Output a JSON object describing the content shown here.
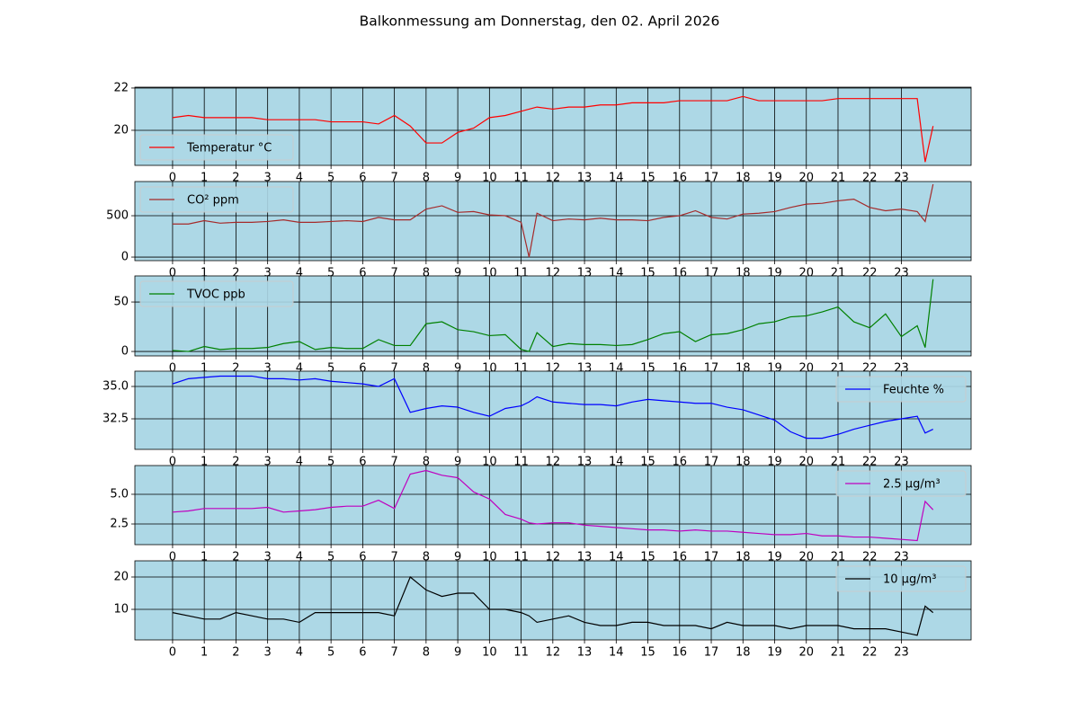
{
  "title": "Balkonmessung am Donnerstag, den 02. April 2026",
  "chart_data": [
    {
      "type": "line",
      "grid": true,
      "legend": "lower left",
      "x": [
        0,
        0.5,
        1,
        1.5,
        2,
        2.5,
        3,
        3.5,
        4,
        4.5,
        5,
        5.5,
        6,
        6.5,
        7,
        7.5,
        8,
        8.5,
        9,
        9.5,
        10,
        10.5,
        11,
        11.25,
        11.5,
        12,
        12.5,
        13,
        13.5,
        14,
        14.5,
        15,
        15.5,
        16,
        16.5,
        17,
        17.5,
        18,
        18.5,
        19,
        19.5,
        20,
        20.5,
        21,
        21.5,
        22,
        22.5,
        23,
        23.5,
        23.75,
        24
      ],
      "xlim": [
        -1.19,
        25.2
      ],
      "xticks": [
        0,
        1,
        2,
        3,
        4,
        5,
        6,
        7,
        8,
        9,
        10,
        11,
        12,
        13,
        14,
        15,
        16,
        17,
        18,
        19,
        20,
        21,
        22,
        23
      ],
      "ylim": [
        18.34,
        22.04
      ],
      "yticks": [
        20,
        22
      ],
      "series": [
        {
          "name": "Temperatur °C",
          "color": "#ff0000",
          "values": [
            20.6,
            20.7,
            20.6,
            20.6,
            20.6,
            20.6,
            20.5,
            20.5,
            20.5,
            20.5,
            20.4,
            20.4,
            20.4,
            20.3,
            20.7,
            20.2,
            19.4,
            19.4,
            19.9,
            20.1,
            20.6,
            20.7,
            20.9,
            21.0,
            21.1,
            21.0,
            21.1,
            21.1,
            21.2,
            21.2,
            21.3,
            21.3,
            21.3,
            21.4,
            21.4,
            21.4,
            21.4,
            21.6,
            21.4,
            21.4,
            21.4,
            21.4,
            21.4,
            21.5,
            21.5,
            21.5,
            21.5,
            21.5,
            21.5,
            18.5,
            20.2
          ]
        }
      ]
    },
    {
      "type": "line",
      "grid": true,
      "legend": "upper left",
      "x": [
        0,
        0.5,
        1,
        1.5,
        2,
        2.5,
        3,
        3.5,
        4,
        4.5,
        5,
        5.5,
        6,
        6.5,
        7,
        7.5,
        8,
        8.5,
        9,
        9.5,
        10,
        10.5,
        11,
        11.25,
        11.5,
        12,
        12.5,
        13,
        13.5,
        14,
        14.5,
        15,
        15.5,
        16,
        16.5,
        17,
        17.5,
        18,
        18.5,
        19,
        19.5,
        20,
        20.5,
        21,
        21.5,
        22,
        22.5,
        23,
        23.5,
        23.75,
        24
      ],
      "xlim": [
        -1.19,
        25.2
      ],
      "xticks": [
        0,
        1,
        2,
        3,
        4,
        5,
        6,
        7,
        8,
        9,
        10,
        11,
        12,
        13,
        14,
        15,
        16,
        17,
        18,
        19,
        20,
        21,
        22,
        23
      ],
      "ylim": [
        -43,
        913
      ],
      "yticks": [
        0,
        500
      ],
      "series": [
        {
          "name": "CO² ppm",
          "color": "#a52a2a",
          "values": [
            400,
            400,
            440,
            410,
            420,
            420,
            430,
            450,
            420,
            420,
            430,
            440,
            430,
            480,
            450,
            450,
            580,
            620,
            540,
            550,
            510,
            500,
            420,
            0,
            530,
            440,
            460,
            450,
            470,
            450,
            450,
            440,
            480,
            500,
            560,
            480,
            460,
            520,
            530,
            550,
            600,
            640,
            650,
            680,
            700,
            600,
            560,
            580,
            550,
            430,
            880
          ]
        }
      ]
    },
    {
      "type": "line",
      "grid": true,
      "legend": "upper left",
      "x": [
        0,
        0.5,
        1,
        1.5,
        2,
        2.5,
        3,
        3.5,
        4,
        4.5,
        5,
        5.5,
        6,
        6.5,
        7,
        7.5,
        8,
        8.5,
        9,
        9.5,
        10,
        10.5,
        11,
        11.25,
        11.5,
        12,
        12.5,
        13,
        13.5,
        14,
        14.5,
        15,
        15.5,
        16,
        16.5,
        17,
        17.5,
        18,
        18.5,
        19,
        19.5,
        20,
        20.5,
        21,
        21.5,
        22,
        22.5,
        23,
        23.5,
        23.75,
        24
      ],
      "xlim": [
        -1.19,
        25.2
      ],
      "xticks": [
        0,
        1,
        2,
        3,
        4,
        5,
        6,
        7,
        8,
        9,
        10,
        11,
        12,
        13,
        14,
        15,
        16,
        17,
        18,
        19,
        20,
        21,
        22,
        23
      ],
      "ylim": [
        -4.5,
        76.4
      ],
      "yticks": [
        0,
        50
      ],
      "series": [
        {
          "name": "TVOC ppb",
          "color": "#008000",
          "values": [
            1,
            0,
            5,
            2,
            3,
            3,
            4,
            8,
            10,
            2,
            4,
            3,
            3,
            12,
            6,
            6,
            28,
            30,
            22,
            20,
            16,
            17,
            2,
            0,
            19,
            5,
            8,
            7,
            7,
            6,
            7,
            12,
            18,
            20,
            10,
            17,
            18,
            22,
            28,
            30,
            35,
            36,
            40,
            45,
            30,
            24,
            38,
            15,
            26,
            4,
            73
          ]
        }
      ]
    },
    {
      "type": "line",
      "grid": true,
      "legend": "upper right",
      "x": [
        0,
        0.5,
        1,
        1.5,
        2,
        2.5,
        3,
        3.5,
        4,
        4.5,
        5,
        5.5,
        6,
        6.5,
        7,
        7.5,
        8,
        8.5,
        9,
        9.5,
        10,
        10.5,
        11,
        11.25,
        11.5,
        12,
        12.5,
        13,
        13.5,
        14,
        14.5,
        15,
        15.5,
        16,
        16.5,
        17,
        17.5,
        18,
        18.5,
        19,
        19.5,
        20,
        20.5,
        21,
        21.5,
        22,
        22.5,
        23,
        23.5,
        23.75,
        24
      ],
      "xlim": [
        -1.19,
        25.2
      ],
      "xticks": [
        0,
        1,
        2,
        3,
        4,
        5,
        6,
        7,
        8,
        9,
        10,
        11,
        12,
        13,
        14,
        15,
        16,
        17,
        18,
        19,
        20,
        21,
        22,
        23
      ],
      "ylim": [
        30.14,
        36.18
      ],
      "yticks": [
        {
          "value": 32.5,
          "label": "32.5"
        },
        {
          "value": 35,
          "label": "35.0"
        }
      ],
      "series": [
        {
          "name": "Feuchte %",
          "color": "#0000ff",
          "values": [
            35.2,
            35.6,
            35.7,
            35.8,
            35.8,
            35.8,
            35.6,
            35.6,
            35.5,
            35.6,
            35.4,
            35.3,
            35.2,
            35.0,
            35.6,
            33.0,
            33.3,
            33.5,
            33.4,
            33.0,
            32.7,
            33.3,
            33.5,
            33.8,
            34.2,
            33.8,
            33.7,
            33.6,
            33.6,
            33.5,
            33.8,
            34.0,
            33.9,
            33.8,
            33.7,
            33.7,
            33.4,
            33.2,
            32.8,
            32.4,
            31.5,
            31.0,
            31.0,
            31.3,
            31.7,
            32.0,
            32.3,
            32.5,
            32.7,
            31.4,
            31.7
          ]
        }
      ]
    },
    {
      "type": "line",
      "grid": true,
      "legend": "upper right",
      "x": [
        0,
        0.5,
        1,
        1.5,
        2,
        2.5,
        3,
        3.5,
        4,
        4.5,
        5,
        5.5,
        6,
        6.5,
        7,
        7.5,
        8,
        8.5,
        9,
        9.5,
        10,
        10.5,
        11,
        11.25,
        11.5,
        12,
        12.5,
        13,
        13.5,
        14,
        14.5,
        15,
        15.5,
        16,
        16.5,
        17,
        17.5,
        18,
        18.5,
        19,
        19.5,
        20,
        20.5,
        21,
        21.5,
        22,
        22.5,
        23,
        23.5,
        23.75,
        24
      ],
      "xlim": [
        -1.19,
        25.2
      ],
      "xticks": [
        0,
        1,
        2,
        3,
        4,
        5,
        6,
        7,
        8,
        9,
        10,
        11,
        12,
        13,
        14,
        15,
        16,
        17,
        18,
        19,
        20,
        21,
        22,
        23
      ],
      "ylim": [
        0.76,
        7.42
      ],
      "yticks": [
        {
          "value": 2.5,
          "label": "2.5"
        },
        {
          "value": 5,
          "label": "5.0"
        }
      ],
      "series": [
        {
          "name": "2.5 µg/m³",
          "color": "#bf00bf",
          "values": [
            3.5,
            3.6,
            3.8,
            3.8,
            3.8,
            3.8,
            3.9,
            3.5,
            3.6,
            3.7,
            3.9,
            4.0,
            4.0,
            4.5,
            3.8,
            6.7,
            7.0,
            6.6,
            6.4,
            5.2,
            4.6,
            3.3,
            2.9,
            2.6,
            2.5,
            2.6,
            2.6,
            2.4,
            2.3,
            2.2,
            2.1,
            2.0,
            2.0,
            1.9,
            2.0,
            1.9,
            1.9,
            1.8,
            1.7,
            1.6,
            1.6,
            1.7,
            1.5,
            1.5,
            1.4,
            1.4,
            1.3,
            1.2,
            1.1,
            4.4,
            3.7
          ]
        }
      ]
    },
    {
      "type": "line",
      "grid": true,
      "legend": "upper right",
      "x": [
        0,
        0.5,
        1,
        1.5,
        2,
        2.5,
        3,
        3.5,
        4,
        4.5,
        5,
        5.5,
        6,
        6.5,
        7,
        7.5,
        8,
        8.5,
        9,
        9.5,
        10,
        10.5,
        11,
        11.25,
        11.5,
        12,
        12.5,
        13,
        13.5,
        14,
        14.5,
        15,
        15.5,
        16,
        16.5,
        17,
        17.5,
        18,
        18.5,
        19,
        19.5,
        20,
        20.5,
        21,
        21.5,
        22,
        22.5,
        23,
        23.5,
        23.75,
        24
      ],
      "xlim": [
        -1.19,
        25.2
      ],
      "xticks": [
        0,
        1,
        2,
        3,
        4,
        5,
        6,
        7,
        8,
        9,
        10,
        11,
        12,
        13,
        14,
        15,
        16,
        17,
        18,
        19,
        20,
        21,
        22,
        23
      ],
      "ylim": [
        0.56,
        25
      ],
      "yticks": [
        10,
        20
      ],
      "series": [
        {
          "name": "10 µg/m³",
          "color": "#000000",
          "values": [
            9,
            8,
            7,
            7,
            9,
            8,
            7,
            7,
            6,
            9,
            9,
            9,
            9,
            9,
            8,
            20,
            16,
            14,
            15,
            15,
            10,
            10,
            9,
            8,
            6,
            7,
            8,
            6,
            5,
            5,
            6,
            6,
            5,
            5,
            5,
            4,
            6,
            5,
            5,
            5,
            4,
            5,
            5,
            5,
            4,
            4,
            4,
            3,
            2,
            11,
            9
          ]
        }
      ]
    }
  ]
}
